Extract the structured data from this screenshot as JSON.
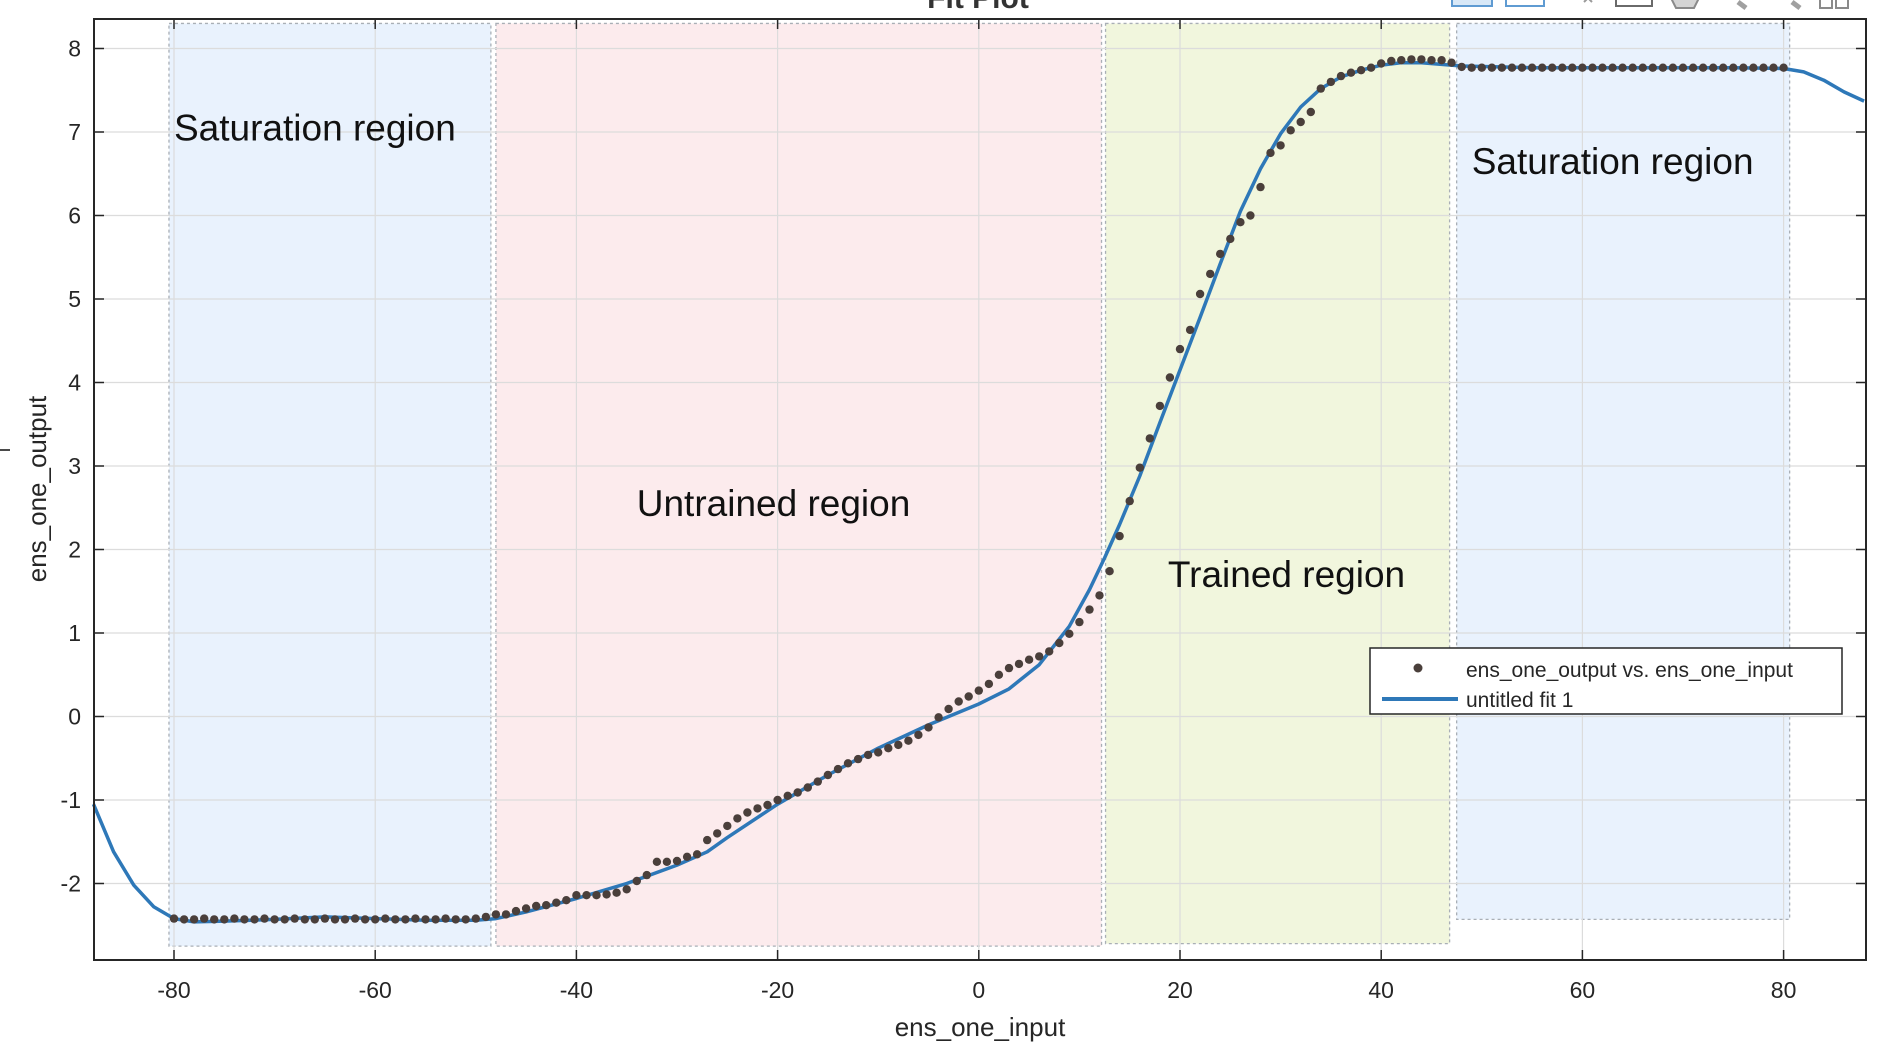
{
  "window": {
    "title": "Fit Plot"
  },
  "chart_data": {
    "type": "scatter",
    "title": "Fit Plot",
    "xlabel": "ens_one_input",
    "ylabel": "ens_one_output",
    "xlim": [
      -88,
      88
    ],
    "ylim": [
      -2.95,
      8.35
    ],
    "xticks": [
      -80,
      -60,
      -40,
      -20,
      0,
      20,
      40,
      60,
      80
    ],
    "yticks": [
      -2,
      -1,
      0,
      1,
      2,
      3,
      4,
      5,
      6,
      7,
      8
    ],
    "grid": true,
    "legend_placement": "right, mid-lower",
    "colors": {
      "points": "#4a3f3b",
      "fit_line": "#2e78b8",
      "saturation_region": "#e9f2fd",
      "untrained_region": "#fcebed",
      "trained_region": "#f1f6dd"
    },
    "regions": [
      {
        "label": "Saturation region",
        "x_range": [
          -80.5,
          -48.5
        ],
        "y_range": [
          -2.75,
          8.3
        ],
        "color": "#e9f2fd",
        "label_at": [
          -80,
          6.9
        ]
      },
      {
        "label": "Untrained region",
        "x_range": [
          -48,
          12.2
        ],
        "y_range": [
          -2.75,
          8.3
        ],
        "color": "#fcebed",
        "label_at": [
          -34,
          2.4
        ]
      },
      {
        "label": "Trained region",
        "x_range": [
          12.6,
          46.8
        ],
        "y_range": [
          -2.72,
          8.3
        ],
        "color": "#f1f6dd",
        "label_at": [
          18.8,
          1.55
        ]
      },
      {
        "label": "Saturation region",
        "x_range": [
          47.5,
          80.6
        ],
        "y_range": [
          -2.43,
          8.3
        ],
        "color": "#e9f2fd",
        "label_at": [
          49,
          6.5
        ]
      }
    ],
    "series": [
      {
        "name": "ens_one_output vs. ens_one_input",
        "kind": "points",
        "points": [
          [
            -80,
            -2.42
          ],
          [
            -79,
            -2.43
          ],
          [
            -78,
            -2.43
          ],
          [
            -77,
            -2.42
          ],
          [
            -76,
            -2.43
          ],
          [
            -75,
            -2.43
          ],
          [
            -74,
            -2.42
          ],
          [
            -73,
            -2.43
          ],
          [
            -72,
            -2.43
          ],
          [
            -71,
            -2.42
          ],
          [
            -70,
            -2.43
          ],
          [
            -69,
            -2.43
          ],
          [
            -68,
            -2.42
          ],
          [
            -67,
            -2.43
          ],
          [
            -66,
            -2.43
          ],
          [
            -65,
            -2.42
          ],
          [
            -64,
            -2.43
          ],
          [
            -63,
            -2.43
          ],
          [
            -62,
            -2.42
          ],
          [
            -61,
            -2.43
          ],
          [
            -60,
            -2.43
          ],
          [
            -59,
            -2.42
          ],
          [
            -58,
            -2.43
          ],
          [
            -57,
            -2.43
          ],
          [
            -56,
            -2.42
          ],
          [
            -55,
            -2.43
          ],
          [
            -54,
            -2.43
          ],
          [
            -53,
            -2.42
          ],
          [
            -52,
            -2.43
          ],
          [
            -51,
            -2.43
          ],
          [
            -50,
            -2.42
          ],
          [
            -49,
            -2.4
          ],
          [
            -48,
            -2.37
          ],
          [
            -47,
            -2.37
          ],
          [
            -46,
            -2.33
          ],
          [
            -45,
            -2.3
          ],
          [
            -44,
            -2.27
          ],
          [
            -43,
            -2.26
          ],
          [
            -42,
            -2.23
          ],
          [
            -41,
            -2.2
          ],
          [
            -40,
            -2.14
          ],
          [
            -39,
            -2.14
          ],
          [
            -38,
            -2.14
          ],
          [
            -37,
            -2.13
          ],
          [
            -36,
            -2.11
          ],
          [
            -35,
            -2.07
          ],
          [
            -34,
            -1.97
          ],
          [
            -33,
            -1.9
          ],
          [
            -32,
            -1.74
          ],
          [
            -31,
            -1.74
          ],
          [
            -30,
            -1.73
          ],
          [
            -29,
            -1.68
          ],
          [
            -28,
            -1.65
          ],
          [
            -27,
            -1.48
          ],
          [
            -26,
            -1.4
          ],
          [
            -25,
            -1.31
          ],
          [
            -24,
            -1.22
          ],
          [
            -23,
            -1.15
          ],
          [
            -22,
            -1.1
          ],
          [
            -21,
            -1.06
          ],
          [
            -20,
            -1.0
          ],
          [
            -19,
            -0.95
          ],
          [
            -18,
            -0.91
          ],
          [
            -17,
            -0.85
          ],
          [
            -16,
            -0.78
          ],
          [
            -15,
            -0.7
          ],
          [
            -14,
            -0.63
          ],
          [
            -13,
            -0.56
          ],
          [
            -12,
            -0.51
          ],
          [
            -11,
            -0.46
          ],
          [
            -10,
            -0.43
          ],
          [
            -9,
            -0.38
          ],
          [
            -8,
            -0.34
          ],
          [
            -7,
            -0.29
          ],
          [
            -6,
            -0.22
          ],
          [
            -5,
            -0.13
          ],
          [
            -4,
            -0.01
          ],
          [
            -3,
            0.09
          ],
          [
            -2,
            0.18
          ],
          [
            -1,
            0.24
          ],
          [
            0,
            0.31
          ],
          [
            1,
            0.39
          ],
          [
            2,
            0.5
          ],
          [
            3,
            0.58
          ],
          [
            4,
            0.63
          ],
          [
            5,
            0.68
          ],
          [
            6,
            0.72
          ],
          [
            7,
            0.78
          ],
          [
            8,
            0.88
          ],
          [
            9,
            0.99
          ],
          [
            10,
            1.13
          ],
          [
            11,
            1.28
          ],
          [
            12,
            1.45
          ],
          [
            13,
            1.74
          ],
          [
            14,
            2.16
          ],
          [
            15,
            2.58
          ],
          [
            16,
            2.98
          ],
          [
            17,
            3.33
          ],
          [
            18,
            3.72
          ],
          [
            19,
            4.06
          ],
          [
            20,
            4.4
          ],
          [
            21,
            4.63
          ],
          [
            22,
            5.06
          ],
          [
            23,
            5.3
          ],
          [
            24,
            5.54
          ],
          [
            25,
            5.72
          ],
          [
            26,
            5.92
          ],
          [
            27,
            6.0
          ],
          [
            28,
            6.34
          ],
          [
            29,
            6.75
          ],
          [
            30,
            6.84
          ],
          [
            31,
            7.02
          ],
          [
            32,
            7.12
          ],
          [
            33,
            7.24
          ],
          [
            34,
            7.52
          ],
          [
            35,
            7.6
          ],
          [
            36,
            7.67
          ],
          [
            37,
            7.71
          ],
          [
            38,
            7.74
          ],
          [
            39,
            7.77
          ],
          [
            40,
            7.82
          ],
          [
            41,
            7.85
          ],
          [
            42,
            7.86
          ],
          [
            43,
            7.87
          ],
          [
            44,
            7.87
          ],
          [
            45,
            7.86
          ],
          [
            46,
            7.86
          ],
          [
            47,
            7.83
          ],
          [
            48,
            7.78
          ],
          [
            49,
            7.77
          ],
          [
            50,
            7.77
          ],
          [
            51,
            7.77
          ],
          [
            52,
            7.77
          ],
          [
            53,
            7.77
          ],
          [
            54,
            7.77
          ],
          [
            55,
            7.77
          ],
          [
            56,
            7.77
          ],
          [
            57,
            7.77
          ],
          [
            58,
            7.77
          ],
          [
            59,
            7.77
          ],
          [
            60,
            7.77
          ],
          [
            61,
            7.77
          ],
          [
            62,
            7.77
          ],
          [
            63,
            7.77
          ],
          [
            64,
            7.77
          ],
          [
            65,
            7.77
          ],
          [
            66,
            7.77
          ],
          [
            67,
            7.77
          ],
          [
            68,
            7.77
          ],
          [
            69,
            7.77
          ],
          [
            70,
            7.77
          ],
          [
            71,
            7.77
          ],
          [
            72,
            7.77
          ],
          [
            73,
            7.77
          ],
          [
            74,
            7.77
          ],
          [
            75,
            7.77
          ],
          [
            76,
            7.77
          ],
          [
            77,
            7.77
          ],
          [
            78,
            7.77
          ],
          [
            79,
            7.77
          ],
          [
            80,
            7.77
          ]
        ]
      },
      {
        "name": "untitled fit 1",
        "kind": "line",
        "points": [
          [
            -88,
            -1.05
          ],
          [
            -86,
            -1.62
          ],
          [
            -84,
            -2.02
          ],
          [
            -82,
            -2.28
          ],
          [
            -80,
            -2.42
          ],
          [
            -78,
            -2.46
          ],
          [
            -75,
            -2.45
          ],
          [
            -70,
            -2.43
          ],
          [
            -65,
            -2.4
          ],
          [
            -60,
            -2.42
          ],
          [
            -55,
            -2.44
          ],
          [
            -50,
            -2.44
          ],
          [
            -48,
            -2.42
          ],
          [
            -45,
            -2.34
          ],
          [
            -40,
            -2.18
          ],
          [
            -35,
            -2.0
          ],
          [
            -30,
            -1.78
          ],
          [
            -27,
            -1.62
          ],
          [
            -25,
            -1.45
          ],
          [
            -20,
            -1.05
          ],
          [
            -15,
            -0.7
          ],
          [
            -10,
            -0.38
          ],
          [
            -5,
            -0.1
          ],
          [
            0,
            0.15
          ],
          [
            3,
            0.33
          ],
          [
            6,
            0.62
          ],
          [
            9,
            1.08
          ],
          [
            11,
            1.52
          ],
          [
            12.5,
            1.9
          ],
          [
            14,
            2.3
          ],
          [
            16,
            2.88
          ],
          [
            18,
            3.52
          ],
          [
            20,
            4.15
          ],
          [
            22,
            4.78
          ],
          [
            24,
            5.42
          ],
          [
            26,
            6.05
          ],
          [
            28,
            6.56
          ],
          [
            30,
            6.98
          ],
          [
            32,
            7.3
          ],
          [
            34,
            7.52
          ],
          [
            36,
            7.66
          ],
          [
            38,
            7.74
          ],
          [
            40,
            7.8
          ],
          [
            42,
            7.83
          ],
          [
            44,
            7.83
          ],
          [
            46,
            7.81
          ],
          [
            48,
            7.79
          ],
          [
            55,
            7.77
          ],
          [
            65,
            7.77
          ],
          [
            75,
            7.77
          ],
          [
            80,
            7.76
          ],
          [
            82,
            7.72
          ],
          [
            84,
            7.62
          ],
          [
            86,
            7.48
          ],
          [
            88,
            7.37
          ]
        ]
      }
    ]
  }
}
